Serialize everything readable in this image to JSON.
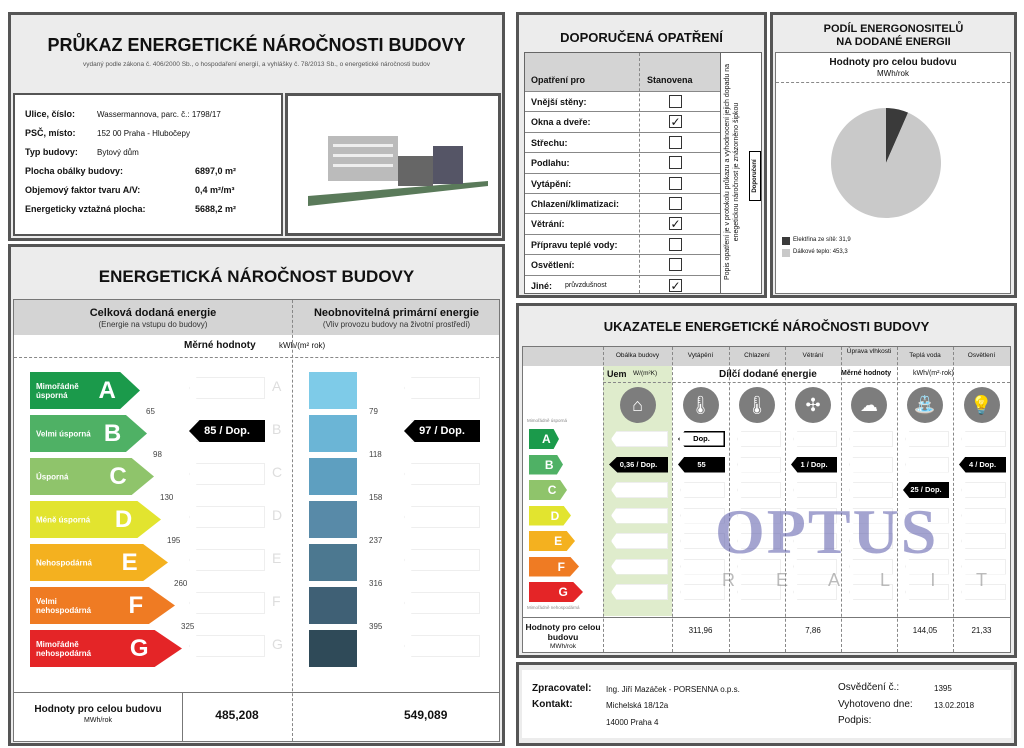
{
  "header": {
    "title": "PRŮKAZ ENERGETICKÉ NÁROČNOSTI BUDOVY",
    "subtitle": "vydaný podle zákona č. 406/2000 Sb., o hospodaření energií, a vyhlášky č. 78/2013 Sb., o energetické náročnosti budov"
  },
  "info": [
    {
      "label": "Ulice, číslo:",
      "value": "Wassermannova, parc. č.: 1798/17"
    },
    {
      "label": "PSČ, místo:",
      "value": "152 00 Praha - Hlubočepy"
    },
    {
      "label": "Typ budovy:",
      "value": "Bytový dům"
    },
    {
      "label": "Plocha obálky budovy:",
      "value": "6897,0 m²"
    },
    {
      "label": "Objemový faktor tvaru A/V:",
      "value": "0,4 m²/m³"
    },
    {
      "label": "Energeticky vztažná plocha:",
      "value": "5688,2 m²"
    }
  ],
  "enb": {
    "title": "ENERGETICKÁ NÁROČNOST BUDOVY",
    "col1_title": "Celková dodaná energie",
    "col1_sub": "(Energie na vstupu do budovy)",
    "col2_title": "Neobnovitelná primární energie",
    "col2_sub": "(Vliv provozu budovy na životní prostředí)",
    "merne": "Měrné hodnoty",
    "unit": "kWh/(m² rok)",
    "classes": [
      {
        "letter": "A",
        "name": "Mimořádně úsporná",
        "color": "#1b9a4b"
      },
      {
        "letter": "B",
        "name": "Velmi úsporná",
        "color": "#4fb165"
      },
      {
        "letter": "C",
        "name": "Úsporná",
        "color": "#8fc46b"
      },
      {
        "letter": "D",
        "name": "Méně úsporná",
        "color": "#e2e42f"
      },
      {
        "letter": "E",
        "name": "Nehospodárná",
        "color": "#f4b11f"
      },
      {
        "letter": "F",
        "name": "Velmi nehospodárná",
        "color": "#ef7b23"
      },
      {
        "letter": "G",
        "name": "Mimořádně nehospodárná",
        "color": "#e42527"
      }
    ],
    "thresholds_left": [
      "65",
      "98",
      "130",
      "195",
      "260",
      "325"
    ],
    "thresholds_right": [
      "79",
      "118",
      "158",
      "237",
      "316",
      "395"
    ],
    "blue_colors": [
      "#7ecbe8",
      "#6bb5d6",
      "#5e9fc0",
      "#588aa8",
      "#4c7890",
      "#3f6075",
      "#2f4a58"
    ],
    "marker_left": {
      "text": "85 / Dop.",
      "class": "B"
    },
    "marker_right": {
      "text": "97 / Dop.",
      "class": "B"
    },
    "total_label": "Hodnoty pro celou budovu",
    "total_unit": "MWh/rok",
    "total_left": "485,208",
    "total_right": "549,089"
  },
  "measures": {
    "title": "DOPORUČENÁ OPATŘENÍ",
    "col1": "Opatření pro",
    "col2": "Stanovena",
    "side_note": "Popis opatření je v protokolu průkazu a vyhodnocení jejich dopadu na enegetickou náročnost je znázorněno šipkou",
    "side_tag": "Doporučení",
    "rows": [
      {
        "label": "Vnější stěny:",
        "checked": false
      },
      {
        "label": "Okna a dveře:",
        "checked": true
      },
      {
        "label": "Střechu:",
        "checked": false
      },
      {
        "label": "Podlahu:",
        "checked": false
      },
      {
        "label": "Vytápění:",
        "checked": false
      },
      {
        "label": "Chlazení/klimatizaci:",
        "checked": false
      },
      {
        "label": "Větrání:",
        "checked": true
      },
      {
        "label": "Přípravu teplé vody:",
        "checked": false
      },
      {
        "label": "Osvětlení:",
        "checked": false
      },
      {
        "label": "Jiné:",
        "extra": "průvzdušnost",
        "checked": true
      }
    ],
    "check_glyph": "✓"
  },
  "share": {
    "title1": "PODÍL ENERGONOSITELŮ",
    "title2": "NA DODANÉ ENERGII",
    "sub": "Hodnoty pro celou budovu",
    "unit": "MWh/rok",
    "chart_data": {
      "type": "pie",
      "slices": [
        {
          "name": "Elektřina ze sítě",
          "value": 31.9,
          "label": "Elektřina ze sítě: 31,9",
          "color": "#3a3a3a"
        },
        {
          "name": "Dálkové teplo",
          "value": 453.3,
          "label": "Dálkové teplo: 453,3",
          "color": "#c9c9c9"
        }
      ],
      "legend": "bottom-left"
    }
  },
  "indicators": {
    "title": "UKAZATELE ENERGETICKÉ NÁROČNOSTI BUDOVY",
    "columns": [
      "Obálka budovy",
      "Vytápění",
      "Chlazení",
      "Větrání",
      "Úprava vlhkosti",
      "Teplá voda",
      "Osvětlení"
    ],
    "icons": [
      "house-icon",
      "heating-thermometer-icon",
      "cooling-thermometer-icon",
      "fan-icon",
      "humidity-icon",
      "tap-icon",
      "light-bulb-icon"
    ],
    "uem": "Uem",
    "uem_unit": "W/(m²K)",
    "dilci": "Dílčí dodané energie",
    "merne": "Měrné hodnoty",
    "unit": "kWh/(m²·rok)",
    "top_label": "Mimořádně úsporná",
    "bottom_label": "Mimořádně nehospodárná",
    "markers": [
      {
        "col": 0,
        "class": "B",
        "text": "0,36 / Dop.",
        "style": "filled"
      },
      {
        "col": 1,
        "class": "A",
        "text": "Dop.",
        "style": "outline"
      },
      {
        "col": 1,
        "class": "B",
        "text": "55",
        "style": "filled"
      },
      {
        "col": 3,
        "class": "B",
        "text": "1 / Dop.",
        "style": "filled"
      },
      {
        "col": 5,
        "class": "C",
        "text": "25 / Dop.",
        "style": "filled"
      },
      {
        "col": 6,
        "class": "B",
        "text": "4 / Dop.",
        "style": "filled"
      }
    ],
    "total_label": "Hodnoty pro celou budovu",
    "total_unit": "MWh/rok",
    "totals": [
      "",
      "311,96",
      "",
      "7,86",
      "",
      "144,05",
      "21,33"
    ]
  },
  "footer": {
    "zprac_label": "Zpracovatel:",
    "zprac": "Ing. Jiří Mazáček - PORSENNA o.p.s.",
    "kontakt_label": "Kontakt:",
    "addr1": "Michelská 18/12a",
    "addr2": "14000  Praha 4",
    "osv_label": "Osvědčení č.:",
    "osv": "1395",
    "vyh_label": "Vyhotoveno dne:",
    "vyh": "13.02.2018",
    "podpis_label": "Podpis:"
  },
  "watermark": {
    "brand": "OPTUS",
    "sub": "R E A L I T Y"
  }
}
